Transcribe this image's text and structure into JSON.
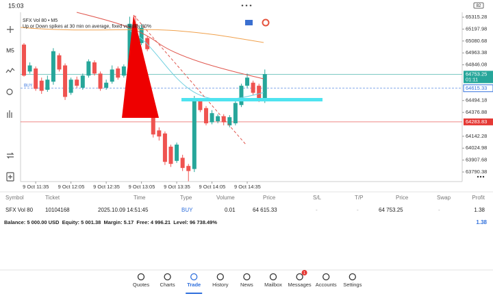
{
  "status_bar": {
    "time": "15:03",
    "battery": "82"
  },
  "toolbar": {
    "timeframe": "M5"
  },
  "chart_data": {
    "type": "candlestick",
    "title": "SFX Vol 80 • M5",
    "subtitle": "Up or Down spikes at 30 min on average, fixed volatility 80%",
    "categories": [
      null,
      null,
      "9 Oct 11:35",
      null,
      null,
      null,
      null,
      null,
      "9 Oct 12:05",
      null,
      null,
      null,
      null,
      null,
      "9 Oct 12:35",
      null,
      null,
      null,
      null,
      null,
      "9 Oct 13:05",
      null,
      null,
      null,
      null,
      null,
      "9 Oct 13:35",
      null,
      null,
      null,
      null,
      null,
      "9 Oct 14:05",
      null,
      null,
      null,
      null,
      null,
      "9 Oct 14:35",
      null,
      null,
      null
    ],
    "open": [
      65045,
      64780,
      64810,
      64690,
      64600,
      64680,
      64940,
      64840,
      64570,
      64700,
      64620,
      64740,
      64870,
      64760,
      64620,
      64680,
      64810,
      64740,
      64830,
      65250,
      65060,
      65110,
      64330,
      64200,
      64170,
      64040,
      63900,
      63930,
      63850,
      63820,
      64490,
      64420,
      64280,
      64290,
      64340,
      64250,
      64270,
      64450,
      64640,
      64670,
      64640,
      64510
    ],
    "high": [
      65060,
      64870,
      64830,
      64720,
      64740,
      65010,
      64960,
      64860,
      64720,
      64730,
      64760,
      64900,
      64890,
      64780,
      64700,
      64840,
      64830,
      64850,
      65320,
      65330,
      65250,
      65130,
      64360,
      64230,
      64190,
      64060,
      64080,
      63960,
      63870,
      64540,
      64520,
      64440,
      64400,
      64360,
      64360,
      64350,
      64490,
      64660,
      64760,
      64690,
      64660,
      64800
    ],
    "low": [
      64730,
      64760,
      64590,
      64560,
      64580,
      64650,
      64780,
      64500,
      64550,
      64620,
      64600,
      64720,
      64740,
      64590,
      64600,
      64660,
      64700,
      64720,
      64800,
      64720,
      65040,
      64980,
      64130,
      64100,
      63860,
      63840,
      63880,
      63800,
      63700,
      63790,
      64380,
      64250,
      64260,
      64270,
      64250,
      64230,
      64250,
      64430,
      64620,
      64550,
      64480,
      64470
    ],
    "close": [
      64740,
      64840,
      64610,
      64590,
      64700,
      64980,
      64800,
      64530,
      64700,
      64640,
      64740,
      64880,
      64760,
      64610,
      64670,
      64800,
      64720,
      64830,
      65250,
      64740,
      65210,
      65000,
      64160,
      64140,
      63890,
      63870,
      64060,
      63830,
      63800,
      64500,
      64400,
      64270,
      64370,
      64340,
      64280,
      64330,
      64470,
      64640,
      64720,
      64570,
      64510,
      64753.25
    ],
    "up_color": "#26a69a",
    "down_color": "#ef5350",
    "ylim": [
      63696,
      65363
    ],
    "yticks": [
      65315.28,
      65197.98,
      65080.68,
      64963.38,
      64846.08,
      64494.18,
      64376.88,
      64142.28,
      64024.98,
      63907.68,
      63790.38
    ],
    "price_lines": [
      {
        "value": 64753.25,
        "color": "#26a69a",
        "note": "01:11"
      },
      {
        "value": 64615.33,
        "color": "#2f6fdc",
        "tag": "BUY"
      },
      {
        "value": 64283.83,
        "color": "#e53935"
      }
    ]
  },
  "positions": {
    "columns": [
      "Symbol",
      "Ticket",
      "Time",
      "Type",
      "Volume",
      "Price",
      "S/L",
      "T/P",
      "Price",
      "Swap",
      "Profit"
    ],
    "rows": [
      [
        "SFX Vol 80",
        "10104168",
        "2025.10.09 14:51:45",
        "BUY",
        "0.01",
        "64 615.33",
        "-",
        "-",
        "64 753.25",
        "-",
        "1.38"
      ]
    ],
    "summary": "Balance: 5 000.00 USD  Equity: 5 001.38  Margin: 5.17  Free: 4 996.21  Level: 96 738.49%",
    "total": "1.38"
  },
  "nav": {
    "items": [
      "Quotes",
      "Charts",
      "Trade",
      "History",
      "News",
      "Mailbox",
      "Messages",
      "Accounts",
      "Settings"
    ],
    "badge": "1"
  }
}
